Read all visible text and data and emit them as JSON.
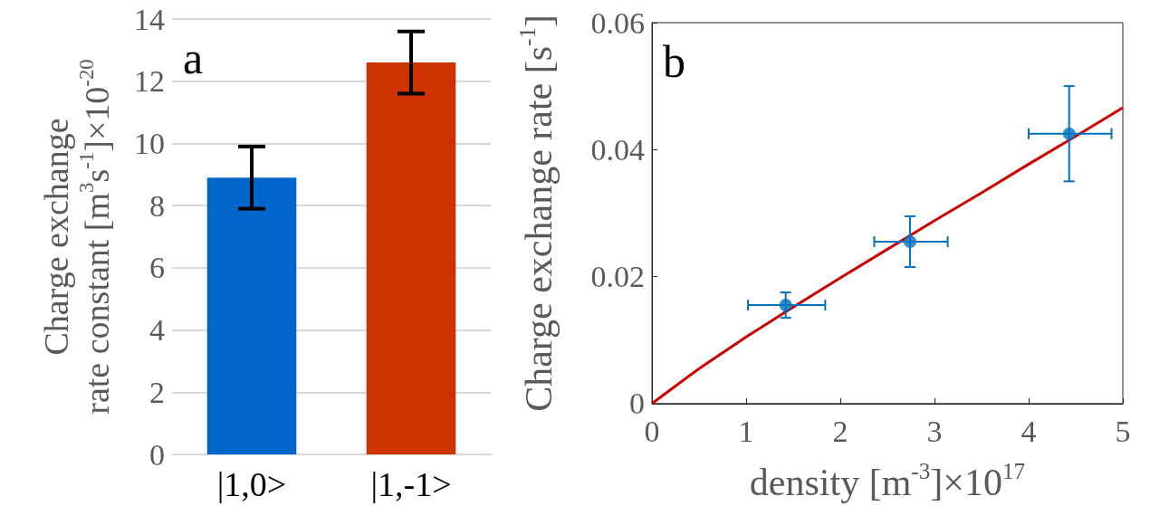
{
  "chart_data": [
    {
      "type": "bar",
      "ylabel": "Charge exchange\nrate constant [m$^{3}$s$^{-1}$]×10$^{-20}$",
      "categories": [
        "|1,0>",
        "|1,-1>"
      ],
      "values": [
        8.9,
        12.6
      ],
      "colors": [
        "#0066cc",
        "#cc3300"
      ],
      "errors": [
        1.0,
        1.0
      ],
      "ylim": [
        0,
        14
      ],
      "yticks": [
        0,
        2,
        4,
        6,
        8,
        10,
        12,
        14
      ],
      "grid": "y",
      "annotations": [
        "a"
      ]
    },
    {
      "type": "scatter",
      "xlabel": "density [m$^{-3}$]×10$^{17}$",
      "ylabel": "Charge exchange rate [s$^{-1}$]",
      "xlim": [
        0,
        5
      ],
      "xticks": [
        0,
        1,
        2,
        3,
        4,
        5
      ],
      "ylim": [
        0,
        0.06
      ],
      "yticks": [
        0,
        0.02,
        0.04,
        0.06
      ],
      "annotations": [
        "b"
      ],
      "series": [
        {
          "type": "scatter",
          "color": "#0072bd",
          "marker": "circle",
          "x": [
            1.42,
            2.74,
            4.43
          ],
          "values": [
            0.0155,
            0.0255,
            0.0425
          ],
          "errors": [
            [
              0.0135,
              0.0175
            ],
            [
              0.0215,
              0.0295
            ],
            [
              0.035,
              0.05
            ]
          ],
          "xerrors": [
            [
              1.02,
              1.84
            ],
            [
              2.36,
              3.14
            ],
            [
              4.0,
              4.88
            ]
          ]
        },
        {
          "type": "line",
          "color": "#cc0000",
          "marker": "none",
          "x": [
            0,
            0.5,
            1,
            1.5,
            2,
            2.5,
            3,
            3.5,
            4,
            4.5,
            5
          ],
          "values": [
            0,
            0.0055,
            0.0105,
            0.0152,
            0.0198,
            0.0243,
            0.0288,
            0.0332,
            0.0377,
            0.0421,
            0.0466
          ]
        }
      ]
    }
  ]
}
